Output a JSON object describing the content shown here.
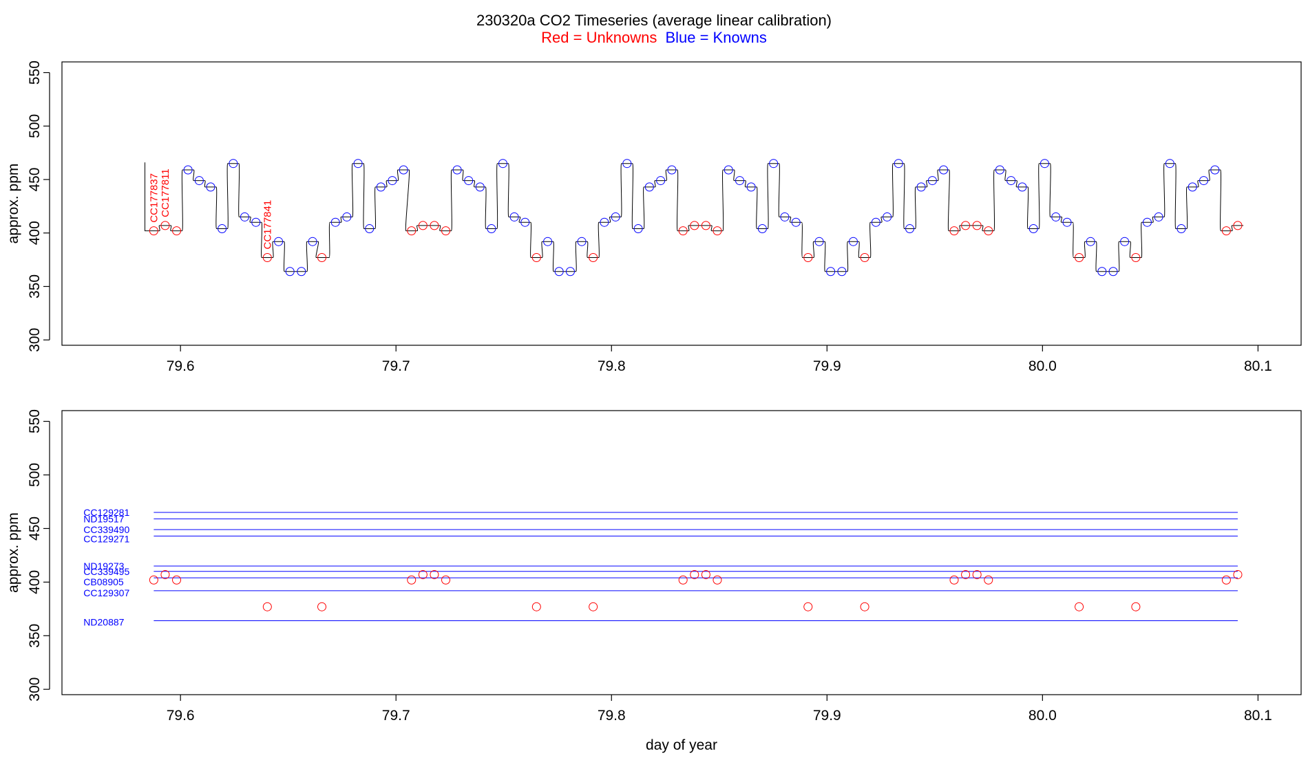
{
  "title": {
    "main": "230320a   CO2 Timeseries (average linear calibration)",
    "legend_red": "Red = Unknowns",
    "legend_blue": "Blue = Knowns"
  },
  "colors": {
    "unknown": "#ff0000",
    "known": "#0000ff",
    "line": "#000000",
    "axis": "#000000"
  },
  "chart_data": [
    {
      "type": "line",
      "panel": "top",
      "ylabel": "approx. ppm",
      "xlabel": "",
      "xlim": [
        79.545,
        80.12
      ],
      "ylim": [
        295,
        560
      ],
      "xticks": [
        79.6,
        79.7,
        79.8,
        79.9,
        80.0,
        80.1
      ],
      "xtick_labels": [
        "79.6",
        "79.7",
        "79.8",
        "79.9",
        "80.0",
        "80.1"
      ],
      "yticks": [
        300,
        350,
        400,
        450,
        500,
        550
      ],
      "ytick_labels": [
        "300",
        "350",
        "400",
        "450",
        "500",
        "550"
      ],
      "trace_start": [
        79.5835,
        466
      ],
      "series": [
        {
          "name": "Unknowns",
          "color": "#ff0000",
          "x": [
            79.5876,
            79.5929,
            79.5982,
            79.6403,
            79.6656,
            79.7072,
            79.7125,
            79.7178,
            79.7231,
            79.7652,
            79.7915,
            79.8332,
            79.8385,
            79.8438,
            79.8491,
            79.8912,
            79.9175,
            79.959,
            79.9643,
            79.9696,
            79.9749,
            80.017,
            80.0433,
            80.0853,
            80.0906
          ],
          "y": [
            402,
            407,
            402,
            377,
            377,
            402,
            407,
            407,
            402,
            377,
            377,
            402,
            407,
            407,
            402,
            377,
            377,
            402,
            407,
            407,
            402,
            377,
            377,
            402,
            407
          ]
        },
        {
          "name": "Knowns",
          "color": "#0000ff",
          "x": [
            79.6035,
            79.6087,
            79.614,
            79.6193,
            79.6245,
            79.6298,
            79.635,
            79.6455,
            79.6508,
            79.6561,
            79.6613,
            79.6719,
            79.6772,
            79.6824,
            79.6877,
            79.693,
            79.6983,
            79.7035,
            79.7284,
            79.7337,
            79.739,
            79.7443,
            79.7496,
            79.7549,
            79.7599,
            79.7704,
            79.7757,
            79.7809,
            79.7862,
            79.7967,
            79.8019,
            79.8072,
            79.8124,
            79.8176,
            79.8228,
            79.828,
            79.8543,
            79.8595,
            79.8648,
            79.87,
            79.8752,
            79.8804,
            79.8856,
            79.8964,
            79.9017,
            79.9069,
            79.9122,
            79.9227,
            79.9279,
            79.9332,
            79.9384,
            79.9437,
            79.9489,
            79.9541,
            79.9802,
            79.9854,
            79.9906,
            79.9958,
            80.001,
            80.0062,
            80.0114,
            80.0223,
            80.0276,
            80.0328,
            80.0381,
            80.0486,
            80.0539,
            80.0591,
            80.0644,
            80.0696,
            80.0748,
            80.08
          ],
          "y": [
            459,
            449,
            443,
            404,
            465,
            415,
            410,
            392,
            364,
            364,
            392,
            410,
            415,
            465,
            404,
            443,
            449,
            459,
            459,
            449,
            443,
            404,
            465,
            415,
            410,
            392,
            364,
            364,
            392,
            410,
            415,
            465,
            404,
            443,
            449,
            459,
            459,
            449,
            443,
            404,
            465,
            415,
            410,
            392,
            364,
            364,
            392,
            410,
            415,
            465,
            404,
            443,
            449,
            459,
            459,
            449,
            443,
            404,
            465,
            415,
            410,
            392,
            364,
            364,
            392,
            410,
            415,
            465,
            404,
            443,
            449,
            459
          ]
        }
      ],
      "annotations": [
        {
          "text": "CC177837",
          "x": 79.5876,
          "y": 402
        },
        {
          "text": "CC177811",
          "x": 79.5929,
          "y": 407
        },
        {
          "text": "CC177841",
          "x": 79.6403,
          "y": 377
        }
      ]
    },
    {
      "type": "scatter",
      "panel": "bottom",
      "ylabel": "approx. ppm",
      "xlabel": "day of year",
      "xlim": [
        79.545,
        80.12
      ],
      "ylim": [
        295,
        560
      ],
      "xticks": [
        79.6,
        79.7,
        79.8,
        79.9,
        80.0,
        80.1
      ],
      "xtick_labels": [
        "79.6",
        "79.7",
        "79.8",
        "79.9",
        "80.0",
        "80.1"
      ],
      "yticks": [
        300,
        350,
        400,
        450,
        500,
        550
      ],
      "ytick_labels": [
        "300",
        "350",
        "400",
        "450",
        "500",
        "550"
      ],
      "reference_lines": {
        "x_start": 79.5876,
        "x_end": 80.0906,
        "label_x": 79.555,
        "items": [
          {
            "name": "CC129281",
            "y": 465
          },
          {
            "name": "ND19517",
            "y": 459
          },
          {
            "name": "CC339490",
            "y": 449
          },
          {
            "name": "CC129271",
            "y": 443
          },
          {
            "name": "ND19273",
            "y": 415
          },
          {
            "name": "CC339495",
            "y": 410
          },
          {
            "name": "CB08905",
            "y": 404
          },
          {
            "name": "CC129307",
            "y": 392
          },
          {
            "name": "ND20887",
            "y": 364
          }
        ]
      },
      "series": [
        {
          "name": "Unknowns",
          "color": "#ff0000",
          "x": [
            79.5876,
            79.5929,
            79.5982,
            79.6403,
            79.6656,
            79.7072,
            79.7125,
            79.7178,
            79.7231,
            79.7652,
            79.7915,
            79.8332,
            79.8385,
            79.8438,
            79.8491,
            79.8912,
            79.9175,
            79.959,
            79.9643,
            79.9696,
            79.9749,
            80.017,
            80.0433,
            80.0853,
            80.0906
          ],
          "y": [
            402,
            407,
            402,
            377,
            377,
            402,
            407,
            407,
            402,
            377,
            377,
            402,
            407,
            407,
            402,
            377,
            377,
            402,
            407,
            407,
            402,
            377,
            377,
            402,
            407
          ]
        }
      ]
    }
  ]
}
